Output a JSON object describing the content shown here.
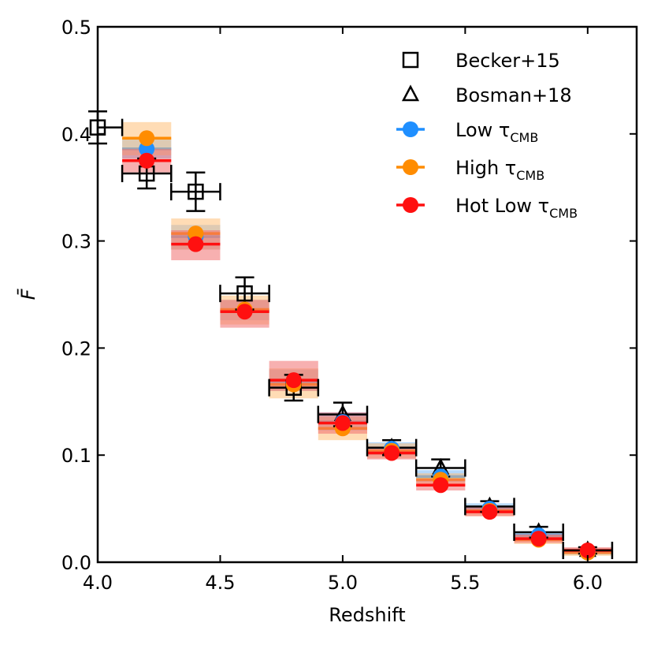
{
  "chart_data": {
    "type": "scatter",
    "title": "",
    "xlabel": "Redshift",
    "ylabel": "F̄",
    "xlim": [
      4.0,
      6.2
    ],
    "ylim": [
      0.0,
      0.5
    ],
    "xticks": [
      "4.0",
      "4.5",
      "5.0",
      "5.5",
      "6.0"
    ],
    "yticks": [
      "0.0",
      "0.1",
      "0.2",
      "0.3",
      "0.4",
      "0.5"
    ],
    "legend_position": "top-right",
    "observations": [
      {
        "name": "Becker+15",
        "marker": "square",
        "color": "#000000",
        "points": [
          {
            "z": 4.0,
            "f": 0.406,
            "xerr": 0.1,
            "yerr": 0.015
          },
          {
            "z": 4.2,
            "f": 0.363,
            "xerr": 0.1,
            "yerr": 0.014
          },
          {
            "z": 4.4,
            "f": 0.346,
            "xerr": 0.1,
            "yerr": 0.018
          },
          {
            "z": 4.6,
            "f": 0.251,
            "xerr": 0.1,
            "yerr": 0.015
          },
          {
            "z": 4.8,
            "f": 0.163,
            "xerr": 0.1,
            "yerr": 0.012
          }
        ]
      },
      {
        "name": "Bosman+18",
        "marker": "triangle",
        "color": "#000000",
        "points": [
          {
            "z": 5.0,
            "f": 0.138,
            "xerr": 0.1,
            "yerr": 0.011
          },
          {
            "z": 5.2,
            "f": 0.107,
            "xerr": 0.1,
            "yerr": 0.007
          },
          {
            "z": 5.4,
            "f": 0.088,
            "xerr": 0.1,
            "yerr": 0.008
          },
          {
            "z": 5.6,
            "f": 0.052,
            "xerr": 0.1,
            "yerr": 0.005
          },
          {
            "z": 5.8,
            "f": 0.028,
            "xerr": 0.1,
            "yerr": 0.005
          },
          {
            "z": 6.0,
            "f": 0.011,
            "xerr": 0.1,
            "yerr": 0.003
          }
        ]
      }
    ],
    "models": [
      {
        "name": "Low τ",
        "subscript": "CMB",
        "color": "#1f8fff",
        "band_color": "#7ab8f5",
        "points": [
          {
            "z": 4.2,
            "f": 0.386,
            "lo": 0.377,
            "hi": 0.395
          },
          {
            "z": 4.4,
            "f": 0.304,
            "lo": 0.292,
            "hi": 0.315
          },
          {
            "z": 4.6,
            "f": 0.235,
            "lo": 0.226,
            "hi": 0.245
          },
          {
            "z": 4.8,
            "f": 0.168,
            "lo": 0.16,
            "hi": 0.18
          },
          {
            "z": 5.0,
            "f": 0.131,
            "lo": 0.123,
            "hi": 0.14
          },
          {
            "z": 5.2,
            "f": 0.106,
            "lo": 0.1,
            "hi": 0.112
          },
          {
            "z": 5.4,
            "f": 0.08,
            "lo": 0.075,
            "hi": 0.086
          },
          {
            "z": 5.6,
            "f": 0.05,
            "lo": 0.046,
            "hi": 0.055
          },
          {
            "z": 5.8,
            "f": 0.025,
            "lo": 0.021,
            "hi": 0.029
          },
          {
            "z": 6.0,
            "f": 0.01,
            "lo": 0.007,
            "hi": 0.013
          }
        ]
      },
      {
        "name": "High τ",
        "subscript": "CMB",
        "color": "#ff8c00",
        "band_color": "#ffbf78",
        "points": [
          {
            "z": 4.2,
            "f": 0.396,
            "lo": 0.38,
            "hi": 0.411
          },
          {
            "z": 4.4,
            "f": 0.307,
            "lo": 0.292,
            "hi": 0.321
          },
          {
            "z": 4.6,
            "f": 0.236,
            "lo": 0.222,
            "hi": 0.249
          },
          {
            "z": 4.8,
            "f": 0.166,
            "lo": 0.153,
            "hi": 0.181
          },
          {
            "z": 5.0,
            "f": 0.125,
            "lo": 0.114,
            "hi": 0.136
          },
          {
            "z": 5.2,
            "f": 0.104,
            "lo": 0.097,
            "hi": 0.111
          },
          {
            "z": 5.4,
            "f": 0.077,
            "lo": 0.071,
            "hi": 0.083
          },
          {
            "z": 5.6,
            "f": 0.048,
            "lo": 0.043,
            "hi": 0.053
          },
          {
            "z": 5.8,
            "f": 0.021,
            "lo": 0.017,
            "hi": 0.026
          },
          {
            "z": 6.0,
            "f": 0.009,
            "lo": 0.006,
            "hi": 0.013
          }
        ]
      },
      {
        "name": "Hot Low τ",
        "subscript": "CMB",
        "color": "#ff1010",
        "band_color": "#f07070",
        "points": [
          {
            "z": 4.2,
            "f": 0.375,
            "lo": 0.364,
            "hi": 0.386
          },
          {
            "z": 4.4,
            "f": 0.297,
            "lo": 0.282,
            "hi": 0.31
          },
          {
            "z": 4.6,
            "f": 0.234,
            "lo": 0.219,
            "hi": 0.245
          },
          {
            "z": 4.8,
            "f": 0.17,
            "lo": 0.16,
            "hi": 0.188
          },
          {
            "z": 5.0,
            "f": 0.13,
            "lo": 0.12,
            "hi": 0.14
          },
          {
            "z": 5.2,
            "f": 0.102,
            "lo": 0.096,
            "hi": 0.108
          },
          {
            "z": 5.4,
            "f": 0.072,
            "lo": 0.067,
            "hi": 0.078
          },
          {
            "z": 5.6,
            "f": 0.047,
            "lo": 0.043,
            "hi": 0.052
          },
          {
            "z": 5.8,
            "f": 0.022,
            "lo": 0.018,
            "hi": 0.026
          },
          {
            "z": 6.0,
            "f": 0.011,
            "lo": 0.008,
            "hi": 0.014
          }
        ]
      }
    ]
  }
}
